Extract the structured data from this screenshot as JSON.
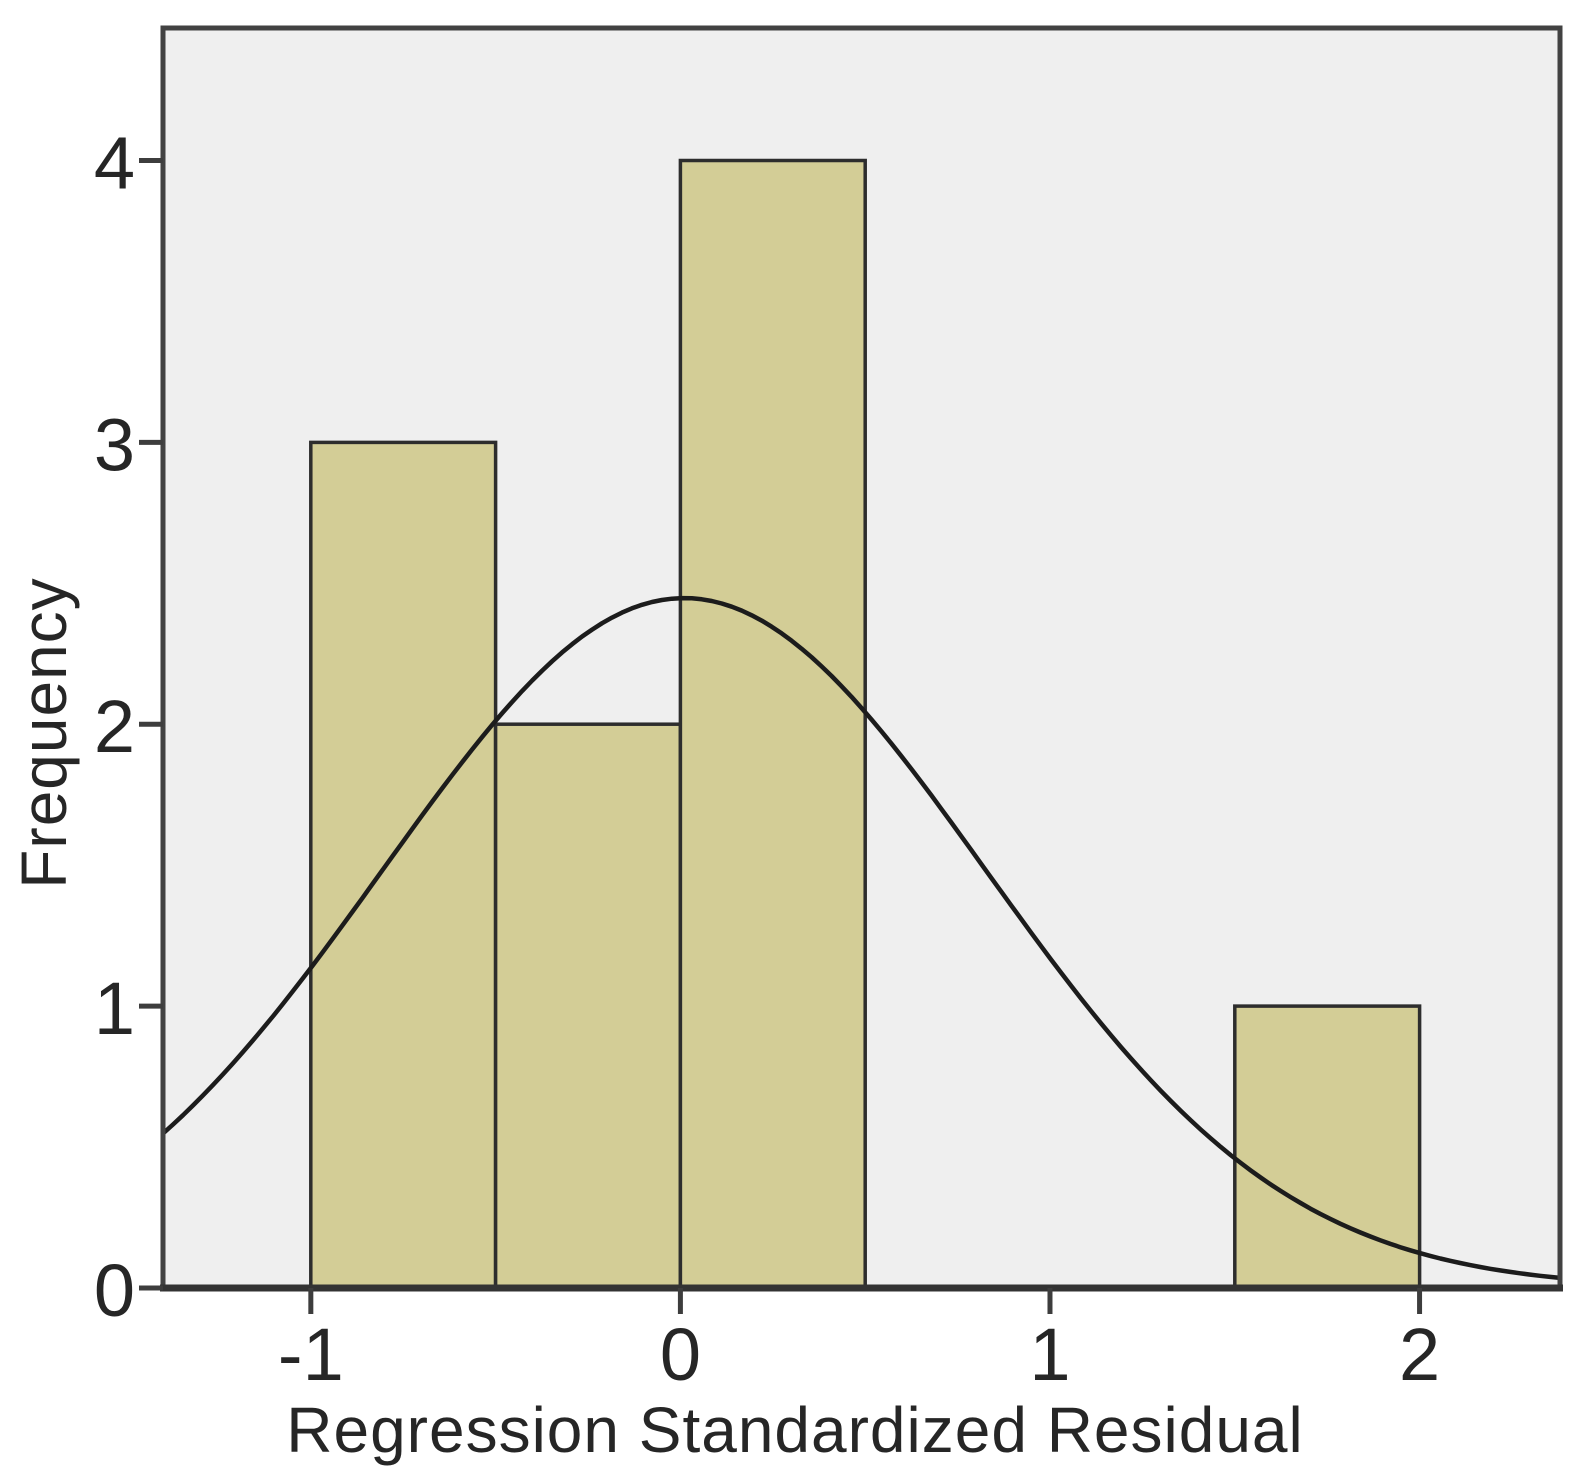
{
  "figure": {
    "background": "#ffffff",
    "plot_background": "#efefef",
    "frame_color": "#424242",
    "baseline_color": "#333333",
    "tick_color": "#3d3d3d",
    "text_color": "#262626"
  },
  "chart_data": {
    "type": "bar",
    "subtype": "histogram",
    "title": "",
    "xlabel": "Regression Standardized Residual",
    "ylabel": "Frequency",
    "bins": [
      {
        "x0": -1.0,
        "x1": -0.5,
        "count": 3
      },
      {
        "x0": -0.5,
        "x1": 0.0,
        "count": 2
      },
      {
        "x0": 0.0,
        "x1": 0.5,
        "count": 4
      },
      {
        "x0": 1.5,
        "x1": 2.0,
        "count": 1
      }
    ],
    "total_n": 10,
    "bin_width": 0.5,
    "bar_fill": "#d3cd96",
    "bar_stroke": "#2d2d2d",
    "normal_curve": {
      "mean": 0.01,
      "sd": 0.815,
      "scale": 5,
      "color": "#1c1c1c"
    },
    "xticks": [
      "-1",
      "0",
      "1",
      "2"
    ],
    "xtick_values": [
      -1,
      0,
      1,
      2
    ],
    "yticks": [
      "0",
      "1",
      "2",
      "3",
      "4"
    ],
    "ytick_values": [
      0,
      1,
      2,
      3,
      4
    ],
    "xlim": [
      -1.4,
      2.38
    ],
    "ylim": [
      0,
      4.47
    ],
    "grid": false,
    "legend": null
  }
}
